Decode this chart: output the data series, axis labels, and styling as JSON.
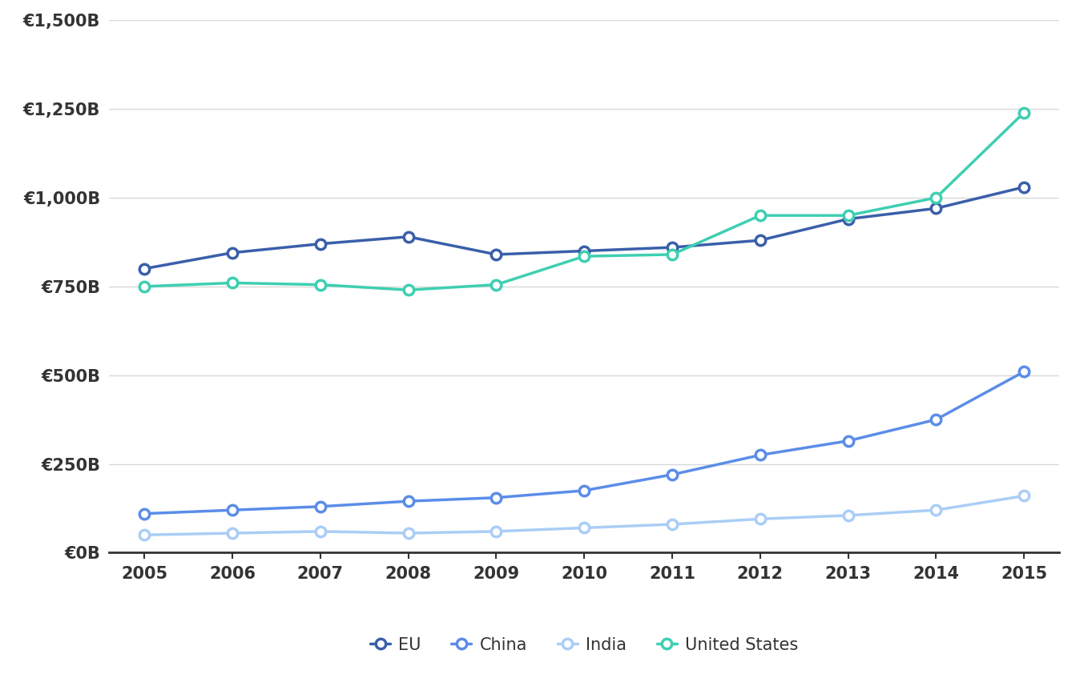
{
  "years": [
    2005,
    2006,
    2007,
    2008,
    2009,
    2010,
    2011,
    2012,
    2013,
    2014,
    2015
  ],
  "EU": [
    800,
    845,
    870,
    890,
    840,
    850,
    860,
    880,
    940,
    970,
    1030
  ],
  "China": [
    110,
    120,
    130,
    145,
    155,
    175,
    220,
    275,
    315,
    375,
    510
  ],
  "India": [
    50,
    55,
    60,
    55,
    60,
    70,
    80,
    95,
    105,
    120,
    160
  ],
  "United_States": [
    750,
    760,
    755,
    740,
    755,
    835,
    840,
    950,
    950,
    1000,
    1240
  ],
  "colors": {
    "EU": "#3a5faa",
    "China": "#5b8de8",
    "India": "#aacef5",
    "United_States": "#3ecfb2"
  },
  "ylim": [
    0,
    1500
  ],
  "yticks": [
    0,
    250,
    500,
    750,
    1000,
    1250,
    1500
  ],
  "ytick_labels": [
    "€0B",
    "€250B",
    "€500B",
    "€750B",
    "€1,000B",
    "€1,250B",
    "€1,500B"
  ],
  "background_color": "#ffffff",
  "grid_color": "#d8d8d8",
  "legend_labels": [
    "EU",
    "China",
    "India",
    "United States"
  ],
  "series_keys": [
    "EU",
    "China",
    "India",
    "United_States"
  ]
}
